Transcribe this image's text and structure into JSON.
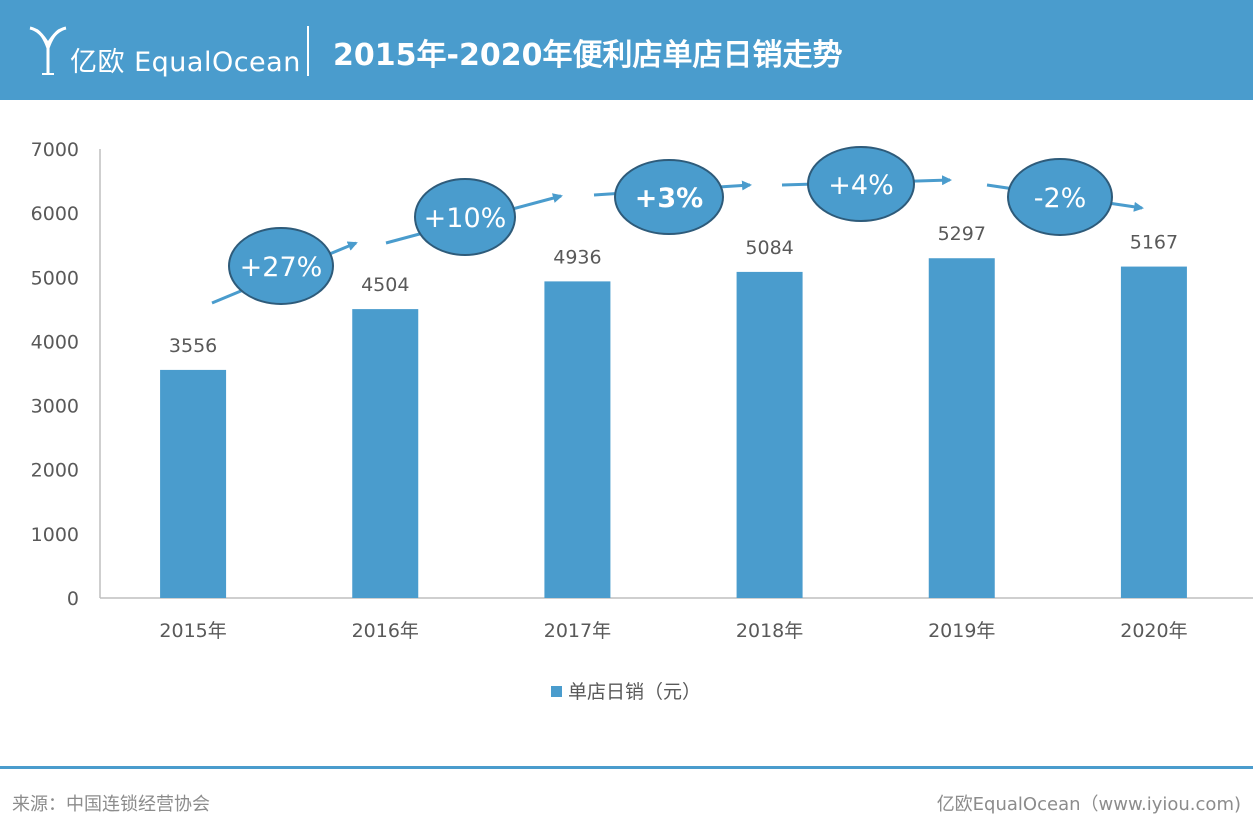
{
  "header": {
    "logo_text": "亿欧 EqualOcean",
    "title": "2015年-2020年便利店单店日销走势"
  },
  "chart_data": {
    "type": "bar",
    "categories": [
      "2015年",
      "2016年",
      "2017年",
      "2018年",
      "2019年",
      "2020年"
    ],
    "series": [
      {
        "name": "单店日销（元）",
        "values": [
          3556,
          4504,
          4936,
          5084,
          5297,
          5167
        ]
      }
    ],
    "value_labels": [
      "3556",
      "4504",
      "4936",
      "5084",
      "5297",
      "5167"
    ],
    "ylim": [
      0,
      7000
    ],
    "yticks": [
      "0",
      "1000",
      "2000",
      "3000",
      "4000",
      "5000",
      "6000",
      "7000"
    ],
    "growth_annotations": [
      "+27%",
      "+10%",
      "+3%",
      "+4%",
      "-2%"
    ],
    "legend_position": "bottom",
    "grid": false,
    "bar_color": "#4a9ccd",
    "ellipse_fill": "#4a9ccd",
    "ellipse_stroke": "#2e5b7a"
  },
  "footer": {
    "source": "来源：中国连锁经营协会",
    "brand": "亿欧EqualOcean（www.iyiou.com)"
  }
}
